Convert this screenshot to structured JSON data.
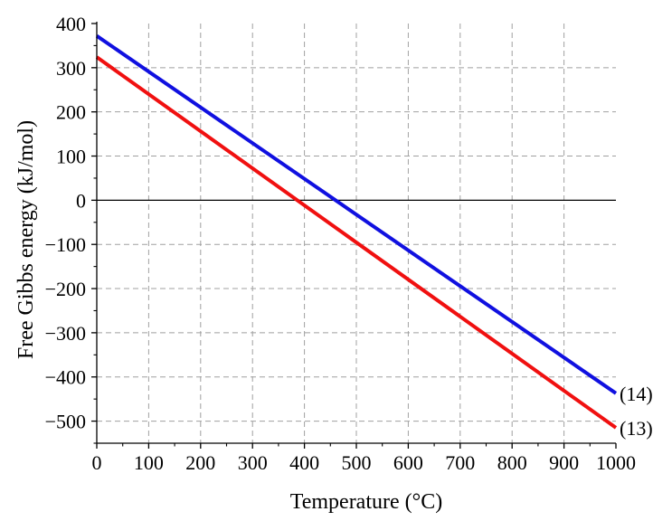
{
  "chart_data": {
    "type": "line",
    "title": "",
    "xlabel": "Temperature (°C)",
    "ylabel": "Free Gibbs energy (kJ/mol)",
    "xlim": [
      0,
      1000
    ],
    "ylim": [
      -550,
      400
    ],
    "x_ticks": [
      "0",
      "100",
      "200",
      "300",
      "400",
      "500",
      "600",
      "700",
      "800",
      "900",
      "1000"
    ],
    "y_ticks": [
      "400",
      "300",
      "200",
      "100",
      "0",
      "−100",
      "−200",
      "−300",
      "−400",
      "−500"
    ],
    "grid": true,
    "zero_line": true,
    "series": [
      {
        "name": "(14)",
        "color": "#1010e0",
        "x": [
          0,
          1000
        ],
        "y": [
          372,
          -437
        ]
      },
      {
        "name": "(13)",
        "color": "#f01010",
        "x": [
          0,
          1000
        ],
        "y": [
          324,
          -515
        ]
      }
    ]
  }
}
